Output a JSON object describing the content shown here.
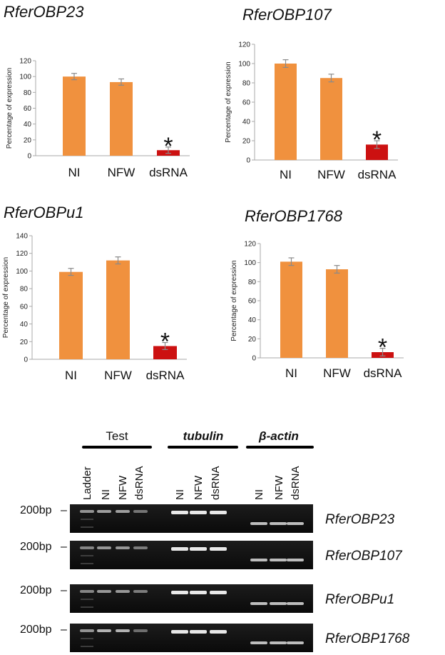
{
  "chart_data": [
    {
      "type": "bar",
      "title": "RferOBP23",
      "ylabel": "Percentage of expression",
      "ylim": [
        0,
        120
      ],
      "yticks": [
        0,
        20,
        40,
        60,
        80,
        100,
        120
      ],
      "categories": [
        "NI",
        "NFW",
        "dsRNA"
      ],
      "values": [
        100,
        93,
        7
      ],
      "errors": [
        4,
        4,
        4
      ],
      "colors": [
        "#f0913e",
        "#f0913e",
        "#cc1111"
      ],
      "annotations": [
        "",
        "",
        "*"
      ]
    },
    {
      "type": "bar",
      "title": "RferOBP107",
      "ylabel": "Percentage of expression",
      "ylim": [
        0,
        120
      ],
      "yticks": [
        0,
        20,
        40,
        60,
        80,
        100,
        120
      ],
      "categories": [
        "NI",
        "NFW",
        "dsRNA"
      ],
      "values": [
        100,
        85,
        16
      ],
      "errors": [
        4,
        4,
        4
      ],
      "colors": [
        "#f0913e",
        "#f0913e",
        "#cc1111"
      ],
      "annotations": [
        "",
        "",
        "*"
      ]
    },
    {
      "type": "bar",
      "title": "RferOBPu1",
      "ylabel": "Percentage of expression",
      "ylim": [
        0,
        140
      ],
      "yticks": [
        0,
        20,
        40,
        60,
        80,
        100,
        120,
        140
      ],
      "categories": [
        "NI",
        "NFW",
        "dsRNA"
      ],
      "values": [
        99,
        112,
        15
      ],
      "errors": [
        4,
        4,
        4
      ],
      "colors": [
        "#f0913e",
        "#f0913e",
        "#cc1111"
      ],
      "annotations": [
        "",
        "",
        "*"
      ]
    },
    {
      "type": "bar",
      "title": "RferOBP1768",
      "ylabel": "Percentage of expression",
      "ylim": [
        0,
        120
      ],
      "yticks": [
        0,
        20,
        40,
        60,
        80,
        100,
        120
      ],
      "categories": [
        "NI",
        "NFW",
        "dsRNA"
      ],
      "values": [
        101,
        93,
        6
      ],
      "errors": [
        4,
        4,
        4
      ],
      "colors": [
        "#f0913e",
        "#f0913e",
        "#cc1111"
      ],
      "annotations": [
        "",
        "",
        "*"
      ]
    }
  ],
  "gel": {
    "groups": [
      {
        "label": "Test",
        "italic": false
      },
      {
        "label": "tubulin",
        "italic": true
      },
      {
        "label": "β-actin",
        "italic": true
      }
    ],
    "lanes": [
      "Ladder",
      "NI",
      "NFW",
      "dsRNA",
      "NI",
      "NFW",
      "dsRNA",
      "NI",
      "NFW",
      "dsRNA"
    ],
    "marker": "200bp",
    "marker_arrow": "–",
    "rows": [
      {
        "gene": "RferOBP23",
        "test_intensity": [
          0.45,
          0.55,
          0.55,
          0.25
        ]
      },
      {
        "gene": "RferOBP107",
        "test_intensity": [
          0.35,
          0.5,
          0.5,
          0.3
        ]
      },
      {
        "gene": "RferOBPu1",
        "test_intensity": [
          0.35,
          0.5,
          0.5,
          0.3
        ]
      },
      {
        "gene": "RferOBP1768",
        "test_intensity": [
          0.45,
          0.7,
          0.7,
          0.2
        ]
      }
    ]
  }
}
